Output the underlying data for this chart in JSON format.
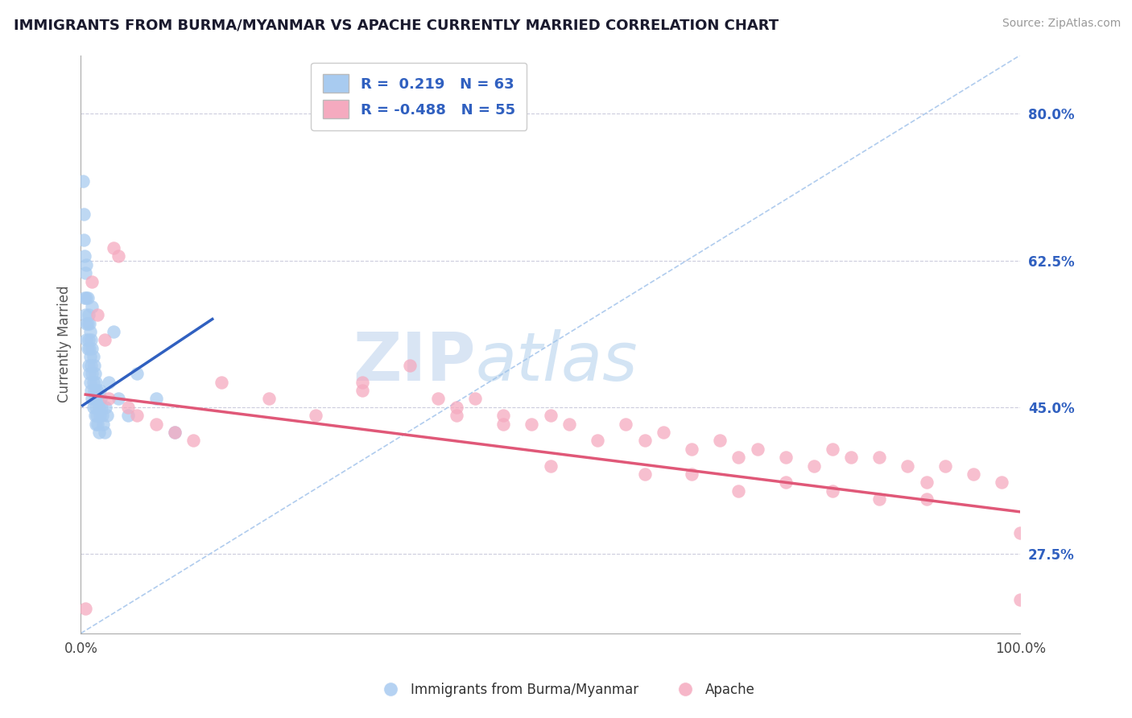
{
  "title": "IMMIGRANTS FROM BURMA/MYANMAR VS APACHE CURRENTLY MARRIED CORRELATION CHART",
  "source_text": "Source: ZipAtlas.com",
  "ylabel": "Currently Married",
  "watermark_zip": "ZIP",
  "watermark_atlas": "atlas",
  "blue_label": "Immigrants from Burma/Myanmar",
  "pink_label": "Apache",
  "blue_R": 0.219,
  "blue_N": 63,
  "pink_R": -0.488,
  "pink_N": 55,
  "xlim": [
    0.0,
    1.0
  ],
  "ylim": [
    0.18,
    0.87
  ],
  "yticks": [
    0.275,
    0.45,
    0.625,
    0.8
  ],
  "ytick_labels": [
    "27.5%",
    "45.0%",
    "62.5%",
    "80.0%"
  ],
  "xticks": [
    0.0,
    0.25,
    0.5,
    0.75,
    1.0
  ],
  "xtick_labels": [
    "0.0%",
    "",
    "",
    "",
    "100.0%"
  ],
  "blue_color": "#A8CBF0",
  "pink_color": "#F5AABF",
  "blue_line_color": "#3060C0",
  "pink_line_color": "#E05878",
  "diagonal_color": "#B0CCEE",
  "background_color": "#FFFFFF",
  "blue_x": [
    0.002,
    0.003,
    0.004,
    0.004,
    0.005,
    0.005,
    0.006,
    0.006,
    0.006,
    0.007,
    0.007,
    0.007,
    0.008,
    0.008,
    0.008,
    0.009,
    0.009,
    0.009,
    0.01,
    0.01,
    0.01,
    0.011,
    0.011,
    0.011,
    0.012,
    0.012,
    0.012,
    0.013,
    0.013,
    0.013,
    0.014,
    0.014,
    0.015,
    0.015,
    0.015,
    0.016,
    0.016,
    0.016,
    0.017,
    0.017,
    0.018,
    0.018,
    0.019,
    0.019,
    0.02,
    0.02,
    0.021,
    0.022,
    0.023,
    0.024,
    0.025,
    0.026,
    0.028,
    0.03,
    0.035,
    0.04,
    0.05,
    0.06,
    0.08,
    0.1,
    0.003,
    0.006,
    0.012
  ],
  "blue_y": [
    0.72,
    0.65,
    0.63,
    0.58,
    0.61,
    0.56,
    0.58,
    0.55,
    0.53,
    0.58,
    0.55,
    0.52,
    0.56,
    0.53,
    0.5,
    0.55,
    0.52,
    0.49,
    0.54,
    0.51,
    0.48,
    0.53,
    0.5,
    0.47,
    0.52,
    0.49,
    0.46,
    0.51,
    0.48,
    0.45,
    0.5,
    0.47,
    0.49,
    0.46,
    0.44,
    0.48,
    0.45,
    0.43,
    0.47,
    0.44,
    0.46,
    0.43,
    0.45,
    0.42,
    0.47,
    0.44,
    0.46,
    0.45,
    0.44,
    0.43,
    0.42,
    0.45,
    0.44,
    0.48,
    0.54,
    0.46,
    0.44,
    0.49,
    0.46,
    0.42,
    0.68,
    0.62,
    0.57
  ],
  "pink_x": [
    0.005,
    0.012,
    0.018,
    0.025,
    0.03,
    0.035,
    0.04,
    0.05,
    0.06,
    0.08,
    0.1,
    0.12,
    0.15,
    0.2,
    0.25,
    0.3,
    0.35,
    0.38,
    0.4,
    0.42,
    0.45,
    0.48,
    0.5,
    0.52,
    0.55,
    0.58,
    0.6,
    0.62,
    0.65,
    0.68,
    0.7,
    0.72,
    0.75,
    0.78,
    0.8,
    0.82,
    0.85,
    0.88,
    0.9,
    0.92,
    0.95,
    0.98,
    1.0,
    0.3,
    0.4,
    0.45,
    0.5,
    0.6,
    0.65,
    0.7,
    0.75,
    0.8,
    0.85,
    0.9,
    1.0
  ],
  "pink_y": [
    0.21,
    0.6,
    0.56,
    0.53,
    0.46,
    0.64,
    0.63,
    0.45,
    0.44,
    0.43,
    0.42,
    0.41,
    0.48,
    0.46,
    0.44,
    0.48,
    0.5,
    0.46,
    0.44,
    0.46,
    0.44,
    0.43,
    0.44,
    0.43,
    0.41,
    0.43,
    0.41,
    0.42,
    0.4,
    0.41,
    0.39,
    0.4,
    0.39,
    0.38,
    0.4,
    0.39,
    0.39,
    0.38,
    0.36,
    0.38,
    0.37,
    0.36,
    0.22,
    0.47,
    0.45,
    0.43,
    0.38,
    0.37,
    0.37,
    0.35,
    0.36,
    0.35,
    0.34,
    0.34,
    0.3
  ],
  "blue_trend_x": [
    0.002,
    0.14
  ],
  "blue_trend_y": [
    0.452,
    0.555
  ],
  "pink_trend_x": [
    0.005,
    1.0
  ],
  "pink_trend_y": [
    0.465,
    0.325
  ]
}
